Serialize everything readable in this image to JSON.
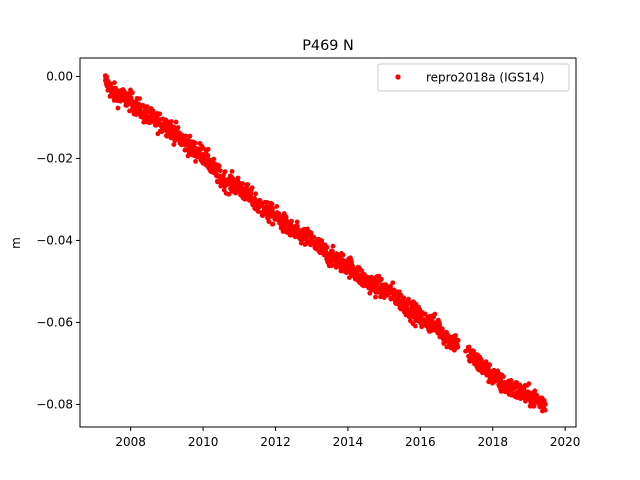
{
  "chart_data": {
    "type": "scatter",
    "title": "P469 N",
    "xlabel": "",
    "ylabel": "m",
    "xlim": [
      2006.6,
      2020.3
    ],
    "ylim": [
      -0.0855,
      0.0045
    ],
    "xticks": [
      2008,
      2010,
      2012,
      2014,
      2016,
      2018,
      2020
    ],
    "xtick_labels": [
      "2008",
      "2010",
      "2012",
      "2014",
      "2016",
      "2018",
      "2020"
    ],
    "yticks": [
      0.0,
      -0.02,
      -0.04,
      -0.06,
      -0.08
    ],
    "ytick_labels": [
      "0.00",
      "−0.02",
      "−0.04",
      "−0.06",
      "−0.08"
    ],
    "legend_position": "top-right",
    "grid": false,
    "series": [
      {
        "name": "repro2018a (IGS14)",
        "color": "#ff0000",
        "marker": "circle",
        "x": [
          2007.3,
          2007.5,
          2007.75,
          2008.0,
          2008.25,
          2008.5,
          2008.75,
          2009.0,
          2009.25,
          2009.5,
          2009.75,
          2010.0,
          2010.25,
          2010.5,
          2010.75,
          2011.0,
          2011.25,
          2011.5,
          2011.75,
          2012.0,
          2012.25,
          2012.5,
          2012.75,
          2013.0,
          2013.25,
          2013.5,
          2013.75,
          2014.0,
          2014.25,
          2014.5,
          2014.75,
          2015.0,
          2015.25,
          2015.5,
          2015.75,
          2016.0,
          2016.25,
          2016.5,
          2016.75,
          2017.0,
          2017.25,
          2017.5,
          2017.75,
          2018.0,
          2018.25,
          2018.5,
          2018.75,
          2019.0,
          2019.25,
          2019.45
        ],
        "y": [
          -0.001,
          -0.004,
          -0.005,
          -0.006,
          -0.008,
          -0.01,
          -0.011,
          -0.012,
          -0.014,
          -0.016,
          -0.018,
          -0.019,
          -0.022,
          -0.025,
          -0.026,
          -0.027,
          -0.029,
          -0.031,
          -0.033,
          -0.034,
          -0.036,
          -0.038,
          -0.039,
          -0.04,
          -0.042,
          -0.044,
          -0.045,
          -0.046,
          -0.048,
          -0.05,
          -0.051,
          -0.052,
          -0.053,
          -0.055,
          -0.057,
          -0.059,
          -0.06,
          -0.061,
          -0.064,
          -0.065,
          -0.067,
          -0.069,
          -0.071,
          -0.073,
          -0.075,
          -0.076,
          -0.077,
          -0.078,
          -0.079,
          -0.08
        ],
        "spread": 0.0012
      }
    ]
  }
}
